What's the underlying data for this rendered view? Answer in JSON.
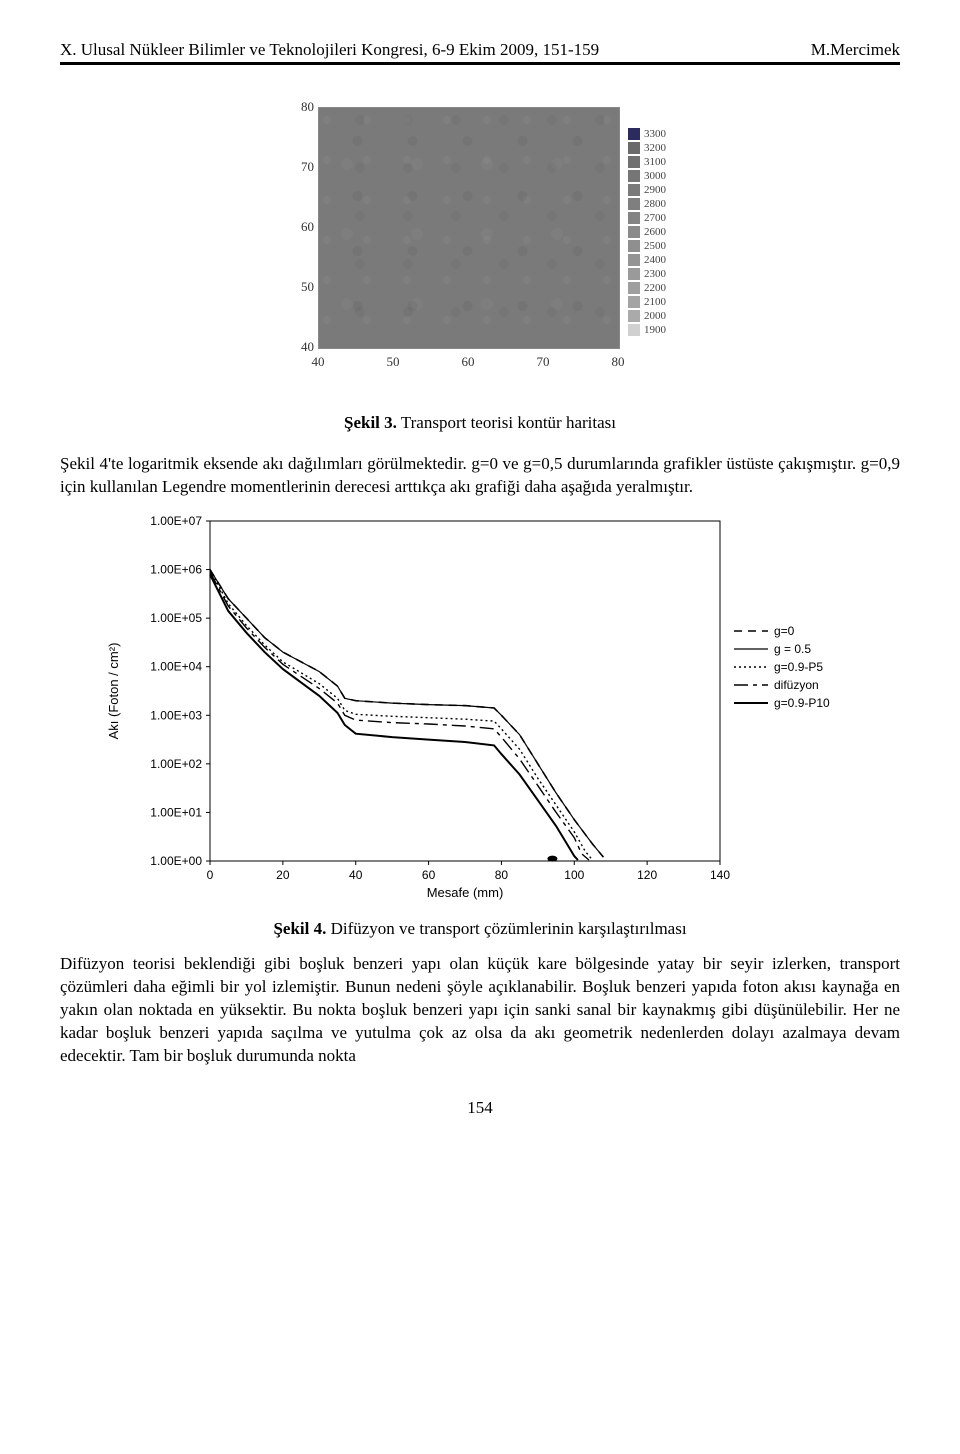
{
  "header": {
    "left": "X. Ulusal Nükleer Bilimler ve Teknolojileri Kongresi, 6-9 Ekim 2009, 151-159",
    "right": "M.Mercimek"
  },
  "heatmap": {
    "y_ticks": [
      80,
      70,
      60,
      50,
      40
    ],
    "x_ticks": [
      40,
      50,
      60,
      70,
      80
    ],
    "image_plot_color": "#7a7a7a",
    "legend_entries": [
      {
        "value": 3300,
        "color": "#2b2b5e"
      },
      {
        "value": 3200,
        "color": "#6a6a6a"
      },
      {
        "value": 3100,
        "color": "#707070"
      },
      {
        "value": 3000,
        "color": "#757575"
      },
      {
        "value": 2900,
        "color": "#7a7a7a"
      },
      {
        "value": 2800,
        "color": "#7f7f7f"
      },
      {
        "value": 2700,
        "color": "#848484"
      },
      {
        "value": 2600,
        "color": "#8a8a8a"
      },
      {
        "value": 2500,
        "color": "#8f8f8f"
      },
      {
        "value": 2400,
        "color": "#949494"
      },
      {
        "value": 2300,
        "color": "#9a9a9a"
      },
      {
        "value": 2200,
        "color": "#9f9f9f"
      },
      {
        "value": 2100,
        "color": "#a4a4a4"
      },
      {
        "value": 2000,
        "color": "#aaaaaa"
      },
      {
        "value": 1900,
        "color": "#d0d0d0"
      }
    ],
    "caption_bold": "Şekil 3.",
    "caption_rest": " Transport teorisi kontür haritası"
  },
  "para1": "Şekil 4'te logaritmik eksende akı dağılımları görülmektedir. g=0 ve g=0,5 durumlarında grafikler üstüste çakışmıştır. g=0,9 için kullanılan Legendre momentlerinin derecesi arttıkça akı grafiği daha aşağıda yeralmıştır.",
  "linechart": {
    "type": "line-log",
    "xlim": [
      0,
      140
    ],
    "x_ticks": [
      0,
      20,
      40,
      60,
      80,
      100,
      120,
      140
    ],
    "xlabel": "Mesafe (mm)",
    "ylabel": "Akı (Foton / cm²)",
    "y_ticks": [
      "1.00E+07",
      "1.00E+06",
      "1.00E+05",
      "1.00E+04",
      "1.00E+03",
      "1.00E+02",
      "1.00E+01",
      "1.00E+00"
    ],
    "y_exps": [
      7,
      6,
      5,
      4,
      3,
      2,
      1,
      0
    ],
    "background_color": "#ffffff",
    "axis_color": "#000000",
    "series": [
      {
        "name": "g=0",
        "label": "g=0",
        "color": "#000000",
        "dash": "8 6",
        "width": 1.6,
        "points": [
          [
            0,
            6.0
          ],
          [
            5,
            5.4
          ],
          [
            10,
            5.0
          ],
          [
            15,
            4.6
          ],
          [
            20,
            4.3
          ],
          [
            30,
            3.9
          ],
          [
            35,
            3.6
          ],
          [
            37,
            3.35
          ],
          [
            40,
            3.3
          ],
          [
            50,
            3.25
          ],
          [
            60,
            3.22
          ],
          [
            70,
            3.2
          ],
          [
            78,
            3.15
          ],
          [
            80,
            3.0
          ],
          [
            85,
            2.6
          ],
          [
            90,
            2.0
          ],
          [
            95,
            1.4
          ],
          [
            100,
            0.85
          ],
          [
            105,
            0.35
          ],
          [
            108,
            0.08
          ]
        ]
      },
      {
        "name": "g=0.5",
        "label": "g = 0.5",
        "color": "#000000",
        "dash": "",
        "width": 1.2,
        "points": [
          [
            0,
            6.0
          ],
          [
            5,
            5.4
          ],
          [
            10,
            5.0
          ],
          [
            15,
            4.6
          ],
          [
            20,
            4.3
          ],
          [
            30,
            3.9
          ],
          [
            35,
            3.6
          ],
          [
            37,
            3.35
          ],
          [
            40,
            3.3
          ],
          [
            50,
            3.25
          ],
          [
            60,
            3.22
          ],
          [
            70,
            3.2
          ],
          [
            78,
            3.15
          ],
          [
            80,
            3.0
          ],
          [
            85,
            2.6
          ],
          [
            90,
            2.0
          ],
          [
            95,
            1.4
          ],
          [
            100,
            0.85
          ],
          [
            105,
            0.35
          ],
          [
            108,
            0.08
          ]
        ]
      },
      {
        "name": "g=0.9-P5",
        "label": "g=0.9-P5",
        "color": "#000000",
        "dash": "2 3",
        "width": 1.4,
        "points": [
          [
            0,
            6.0
          ],
          [
            5,
            5.3
          ],
          [
            10,
            4.85
          ],
          [
            15,
            4.45
          ],
          [
            20,
            4.1
          ],
          [
            30,
            3.65
          ],
          [
            35,
            3.35
          ],
          [
            37,
            3.1
          ],
          [
            40,
            3.02
          ],
          [
            50,
            2.98
          ],
          [
            60,
            2.95
          ],
          [
            70,
            2.92
          ],
          [
            78,
            2.88
          ],
          [
            80,
            2.72
          ],
          [
            85,
            2.3
          ],
          [
            90,
            1.7
          ],
          [
            95,
            1.15
          ],
          [
            100,
            0.6
          ],
          [
            103,
            0.2
          ],
          [
            105,
            0.02
          ]
        ]
      },
      {
        "name": "difuzyon",
        "label": "difüzyon",
        "color": "#000000",
        "dash": "14 5 4 5",
        "width": 1.4,
        "points": [
          [
            0,
            5.95
          ],
          [
            5,
            5.25
          ],
          [
            10,
            4.8
          ],
          [
            15,
            4.4
          ],
          [
            20,
            4.05
          ],
          [
            30,
            3.55
          ],
          [
            35,
            3.25
          ],
          [
            37,
            3.0
          ],
          [
            40,
            2.9
          ],
          [
            50,
            2.85
          ],
          [
            60,
            2.82
          ],
          [
            70,
            2.78
          ],
          [
            78,
            2.72
          ],
          [
            80,
            2.55
          ],
          [
            85,
            2.1
          ],
          [
            90,
            1.55
          ],
          [
            95,
            1.0
          ],
          [
            100,
            0.48
          ],
          [
            102,
            0.15
          ],
          [
            104,
            0.02
          ]
        ]
      },
      {
        "name": "g=0.9-P10",
        "label": "g=0.9-P10",
        "color": "#000000",
        "dash": "",
        "width": 2.0,
        "points": [
          [
            0,
            5.9
          ],
          [
            5,
            5.15
          ],
          [
            10,
            4.7
          ],
          [
            15,
            4.3
          ],
          [
            20,
            3.95
          ],
          [
            30,
            3.4
          ],
          [
            35,
            3.05
          ],
          [
            37,
            2.8
          ],
          [
            40,
            2.62
          ],
          [
            50,
            2.55
          ],
          [
            60,
            2.5
          ],
          [
            70,
            2.45
          ],
          [
            78,
            2.38
          ],
          [
            80,
            2.2
          ],
          [
            85,
            1.78
          ],
          [
            90,
            1.25
          ],
          [
            95,
            0.72
          ],
          [
            98,
            0.35
          ],
          [
            100,
            0.1
          ],
          [
            101,
            0.02
          ]
        ]
      }
    ],
    "caption_bold": "Şekil 4.",
    "caption_rest": " Difüzyon ve transport çözümlerinin karşılaştırılması"
  },
  "para2": "Difüzyon teorisi beklendiği gibi boşluk benzeri yapı olan küçük kare bölgesinde yatay bir seyir izlerken, transport çözümleri daha eğimli bir yol izlemiştir. Bunun nedeni şöyle açıklanabilir. Boşluk benzeri yapıda foton akısı kaynağa en yakın olan noktada en yüksektir. Bu nokta boşluk benzeri yapı için sanki sanal bir kaynakmış gibi düşünülebilir. Her ne kadar boşluk benzeri yapıda saçılma ve yutulma çok az olsa da akı geometrik nedenlerden dolayı azalmaya devam edecektir. Tam bir boşluk durumunda nokta",
  "page_number": "154"
}
